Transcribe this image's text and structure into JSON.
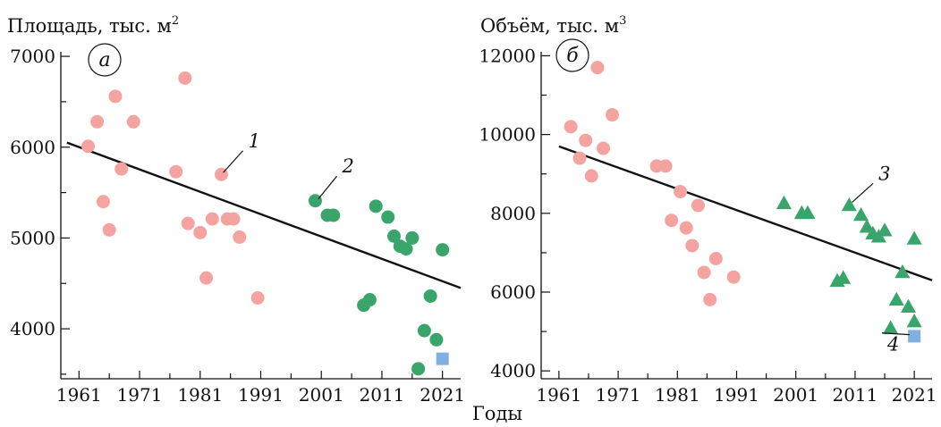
{
  "figure": {
    "xlabel": "Годы"
  },
  "colors": {
    "pink": "#f4a3a0",
    "green": "#3aa56b",
    "blue": "#7fb0e0",
    "line": "#111111"
  },
  "chart_data": [
    {
      "id": "a",
      "type": "scatter",
      "panel_label": "а",
      "ylabel": "Площадь, тыс. м",
      "ylabel_sup": "2",
      "xlim": [
        1958,
        2024
      ],
      "ylim": [
        3450,
        7050
      ],
      "xticks": [
        1961,
        1971,
        1981,
        1991,
        2001,
        2011,
        2021
      ],
      "yticks": [
        4000,
        5000,
        6000,
        7000
      ],
      "xtick_labels": [
        "1961",
        "1971",
        "1981",
        "1991",
        "2001",
        "2011",
        "2021"
      ],
      "ytick_labels": [
        "4000",
        "5000",
        "6000",
        "7000"
      ],
      "series": [
        {
          "marker": "circle",
          "color": "#f4a3a0",
          "points": [
            [
              1962.5,
              6010
            ],
            [
              1964,
              6280
            ],
            [
              1965,
              5400
            ],
            [
              1966,
              5090
            ],
            [
              1967,
              6560
            ],
            [
              1968,
              5760
            ],
            [
              1970,
              6280
            ],
            [
              1977,
              5730
            ],
            [
              1978.5,
              6760
            ],
            [
              1979,
              5160
            ],
            [
              1981,
              5060
            ],
            [
              1982,
              4560
            ],
            [
              1983,
              5210
            ],
            [
              1984.5,
              5700
            ],
            [
              1985.5,
              5210
            ],
            [
              1986.5,
              5210
            ],
            [
              1987.5,
              5010
            ],
            [
              1990.5,
              4340
            ]
          ]
        },
        {
          "marker": "circle",
          "color": "#3aa56b",
          "points": [
            [
              2000,
              5410
            ],
            [
              2002,
              5250
            ],
            [
              2003,
              5250
            ],
            [
              2008,
              4260
            ],
            [
              2009,
              4320
            ],
            [
              2010,
              5350
            ],
            [
              2012,
              5230
            ],
            [
              2013,
              5020
            ],
            [
              2014,
              4910
            ],
            [
              2015,
              4880
            ],
            [
              2016,
              5000
            ],
            [
              2017,
              3560
            ],
            [
              2018,
              3980
            ],
            [
              2019,
              4360
            ],
            [
              2020,
              3880
            ],
            [
              2021,
              4870
            ]
          ]
        },
        {
          "marker": "square",
          "color": "#7fb0e0",
          "points": [
            [
              2021,
              3670
            ]
          ]
        }
      ],
      "trend": {
        "x": [
          1959,
          2024
        ],
        "y": [
          6050,
          4450
        ]
      },
      "annotations": [
        {
          "text": "1",
          "point": [
            1984.8,
            5720
          ],
          "label_at": [
            1988.5,
            6000
          ]
        },
        {
          "text": "2",
          "point": [
            2000.5,
            5430
          ],
          "label_at": [
            2004,
            5720
          ]
        }
      ]
    },
    {
      "id": "b",
      "type": "scatter",
      "panel_label": "б",
      "ylabel": "Объём,  тыс. м",
      "ylabel_sup": "3",
      "xlim": [
        1958,
        2024
      ],
      "ylim": [
        3800,
        12100
      ],
      "xticks": [
        1961,
        1971,
        1981,
        1991,
        2001,
        2011,
        2021
      ],
      "yticks": [
        4000,
        6000,
        8000,
        10000,
        12000
      ],
      "xtick_labels": [
        "1961",
        "1971",
        "1981",
        "1991",
        "2001",
        "2011",
        "2021"
      ],
      "ytick_labels": [
        "4000",
        "6000",
        "8000",
        "10000",
        "12000"
      ],
      "series": [
        {
          "marker": "circle",
          "color": "#f4a3a0",
          "points": [
            [
              1963,
              10200
            ],
            [
              1964.5,
              9400
            ],
            [
              1965.5,
              9850
            ],
            [
              1966.5,
              8950
            ],
            [
              1967.5,
              11700
            ],
            [
              1968.5,
              9650
            ],
            [
              1970,
              10500
            ],
            [
              1977.5,
              9200
            ],
            [
              1979,
              9200
            ],
            [
              1980,
              7820
            ],
            [
              1981.5,
              8550
            ],
            [
              1982.5,
              7630
            ],
            [
              1983.5,
              7180
            ],
            [
              1984.5,
              8200
            ],
            [
              1985.5,
              6500
            ],
            [
              1986.5,
              5810
            ],
            [
              1987.5,
              6850
            ],
            [
              1990.5,
              6380
            ]
          ]
        },
        {
          "marker": "triangle",
          "color": "#3aa56b",
          "points": [
            [
              1999,
              8250
            ],
            [
              2002,
              8000
            ],
            [
              2003,
              8000
            ],
            [
              2008,
              6280
            ],
            [
              2009,
              6350
            ],
            [
              2010,
              8200
            ],
            [
              2012,
              7950
            ],
            [
              2013,
              7650
            ],
            [
              2014,
              7480
            ],
            [
              2015,
              7400
            ],
            [
              2016,
              7560
            ],
            [
              2017,
              5080
            ],
            [
              2018,
              5800
            ],
            [
              2019,
              6500
            ],
            [
              2020,
              5620
            ],
            [
              2021,
              5250
            ],
            [
              2021,
              7350
            ]
          ]
        },
        {
          "marker": "square",
          "color": "#7fb0e0",
          "points": [
            [
              2021,
              4880
            ]
          ]
        }
      ],
      "trend": {
        "x": [
          1961,
          2024
        ],
        "y": [
          9700,
          6300
        ]
      },
      "annotations": [
        {
          "text": "3",
          "point": [
            2010.5,
            8280
          ],
          "label_at": [
            2014.5,
            8850
          ]
        },
        {
          "text": "4",
          "point": [
            2020.2,
            4920
          ],
          "label_at": [
            2016,
            4600
          ]
        }
      ]
    }
  ]
}
